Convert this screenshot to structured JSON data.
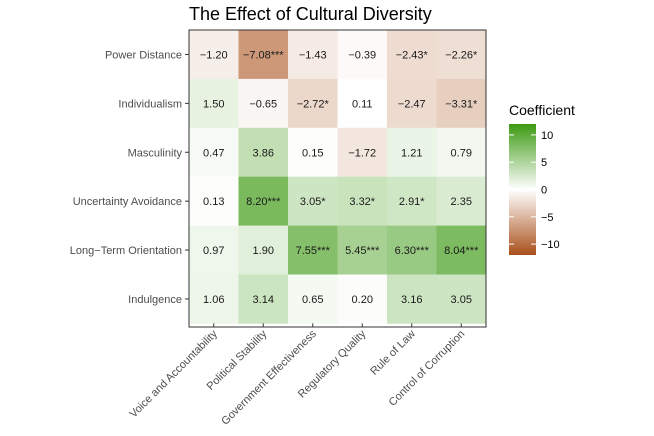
{
  "chart_data": {
    "type": "heatmap",
    "title": "The Effect of Cultural Diversity",
    "rows": [
      "Power Distance",
      "Individualism",
      "Masculinity",
      "Uncertainty Avoidance",
      "Long−Term Orientation",
      "Indulgence"
    ],
    "columns": [
      "Voice and Accountability",
      "Political Stability",
      "Government Effectiveness",
      "Regulatory Quality",
      "Rule of Law",
      "Control of Corruption"
    ],
    "values": [
      [
        -1.2,
        -7.08,
        -1.43,
        -0.39,
        -2.43,
        -2.26
      ],
      [
        1.5,
        -0.65,
        -2.72,
        0.11,
        -2.47,
        -3.31
      ],
      [
        0.47,
        3.86,
        0.15,
        -1.72,
        1.21,
        0.79
      ],
      [
        0.13,
        8.2,
        3.05,
        3.32,
        2.91,
        2.35
      ],
      [
        0.97,
        1.9,
        7.55,
        5.45,
        6.3,
        8.04
      ],
      [
        1.06,
        3.14,
        0.65,
        0.2,
        3.16,
        3.05
      ]
    ],
    "labels": [
      [
        "−1.20",
        "−7.08***",
        "−1.43",
        "−0.39",
        "−2.43*",
        "−2.26*"
      ],
      [
        "1.50",
        "−0.65",
        "−2.72*",
        "0.11",
        "−2.47",
        "−3.31*"
      ],
      [
        "0.47",
        "3.86",
        "0.15",
        "−1.72",
        "1.21",
        "0.79"
      ],
      [
        "0.13",
        "8.20***",
        "3.05*",
        "3.32*",
        "2.91*",
        "2.35"
      ],
      [
        "0.97",
        "1.90",
        "7.55***",
        "5.45***",
        "6.30***",
        "8.04***"
      ],
      [
        "1.06",
        "3.14",
        "0.65",
        "0.20",
        "3.16",
        "3.05"
      ]
    ],
    "legend": {
      "title": "Coefficient",
      "ticks": [
        10,
        5,
        0,
        -5,
        -10
      ],
      "tick_labels": [
        "10",
        "5",
        "0",
        "−5",
        "−10"
      ],
      "range": [
        -12,
        12
      ],
      "position": "right"
    },
    "colors": {
      "low": "#a9501a",
      "mid": "#ffffff",
      "high": "#3d9a12"
    }
  }
}
